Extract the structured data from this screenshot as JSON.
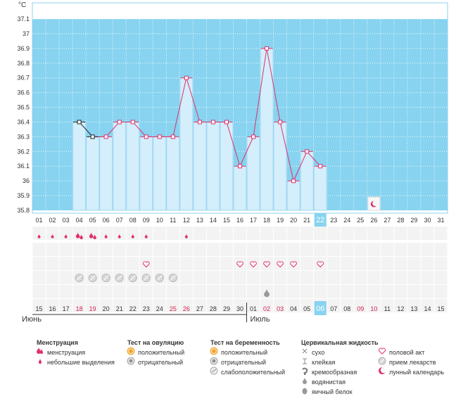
{
  "chart_data": {
    "type": "bar",
    "unit_label": "°C",
    "y_ticks": [
      "37.1",
      "37",
      "36.9",
      "36.8",
      "36.7",
      "36.6",
      "36.5",
      "36.4",
      "36.3",
      "36.2",
      "36.1",
      "36",
      "35.9",
      "35.8"
    ],
    "ylim": [
      35.8,
      37.1
    ],
    "cycle_days": [
      "01",
      "02",
      "03",
      "04",
      "05",
      "06",
      "07",
      "08",
      "09",
      "10",
      "11",
      "12",
      "13",
      "14",
      "15",
      "16",
      "17",
      "18",
      "19",
      "20",
      "21",
      "22",
      "23",
      "24",
      "25",
      "26",
      "27",
      "28",
      "29",
      "30",
      "31"
    ],
    "current_day_index": 21,
    "temperatures": [
      null,
      null,
      null,
      36.4,
      36.3,
      36.3,
      36.4,
      36.4,
      36.3,
      36.3,
      36.3,
      36.7,
      36.4,
      36.4,
      36.4,
      36.1,
      36.3,
      36.9,
      36.4,
      36.0,
      36.2,
      36.1,
      null,
      null,
      null,
      null,
      null,
      null,
      null,
      null,
      null
    ],
    "series": [
      {
        "values": [
          null,
          null,
          null,
          36.4,
          36.3,
          36.3,
          36.4,
          36.4,
          36.3,
          36.3,
          36.3,
          36.7,
          36.4,
          36.4,
          36.4,
          36.1,
          36.3,
          36.9,
          36.4,
          36.0,
          36.2,
          36.1,
          null,
          null,
          null,
          null,
          null,
          null,
          null,
          null,
          null
        ]
      }
    ],
    "calendar_dates": [
      "15",
      "16",
      "17",
      "18",
      "19",
      "20",
      "21",
      "22",
      "23",
      "24",
      "25",
      "26",
      "27",
      "28",
      "29",
      "30",
      "01",
      "02",
      "03",
      "04",
      "05",
      "06",
      "07",
      "08",
      "09",
      "10",
      "11",
      "12",
      "13",
      "14",
      "15"
    ],
    "red_date_indices": [
      3,
      4,
      10,
      11,
      17,
      18,
      24,
      25
    ],
    "months": [
      {
        "label": "Июнь"
      },
      {
        "label": "Июль"
      }
    ],
    "grid": true,
    "menstruation": {
      "indices": [
        0,
        1,
        2,
        3,
        4,
        5,
        6,
        7,
        8,
        11
      ],
      "heavy_indices": [
        3,
        4
      ]
    },
    "intercourse_indices": [
      8,
      15,
      16,
      17,
      18,
      19,
      21
    ],
    "medication_indices": [
      3,
      4,
      5,
      6,
      7,
      8,
      9,
      10
    ],
    "cervical_egg_white_indices": [
      17
    ],
    "lunar_calendar_indices": [
      25
    ],
    "colors": {
      "plot_bg": "#87d3f0",
      "bar_fill": "#d4eefb",
      "bar_stroke": "#9fd8f2",
      "line": "#e0306c",
      "current_day": "#87d3f0",
      "red_text": "#d0204f",
      "row_bg": "#f3f3f3"
    }
  },
  "legend": {
    "menstruation": {
      "title": "Менструация",
      "items": [
        {
          "icon": "drop-double",
          "label": "менструация"
        },
        {
          "icon": "drop-small",
          "label": "небольшие выделения"
        }
      ]
    },
    "ovulation_test": {
      "title": "Тест на овуляцию",
      "items": [
        {
          "icon": "circle-orange",
          "label": "положительный"
        },
        {
          "icon": "circle-gray",
          "label": "отрицательный"
        }
      ]
    },
    "pregnancy_test": {
      "title": "Тест на беременность",
      "items": [
        {
          "icon": "circle-orange",
          "label": "положительный"
        },
        {
          "icon": "circle-gray",
          "label": "отрицательный"
        },
        {
          "icon": "circle-gray-light",
          "label": "слабоположительный"
        }
      ]
    },
    "cervical_fluid": {
      "title": "Цервикальная жидкость",
      "items": [
        {
          "icon": "cross",
          "label": "сухо"
        },
        {
          "icon": "t",
          "label": "клейкая"
        },
        {
          "icon": "swirl",
          "label": "кремообразная"
        },
        {
          "icon": "drop-gray",
          "label": "водянистая"
        },
        {
          "icon": "egg",
          "label": "яичный белок"
        }
      ]
    },
    "other": {
      "items": [
        {
          "icon": "heart",
          "label": "половой акт"
        },
        {
          "icon": "pill",
          "label": "прием лекарств"
        },
        {
          "icon": "moon",
          "label": "лунный календарь"
        }
      ]
    }
  }
}
